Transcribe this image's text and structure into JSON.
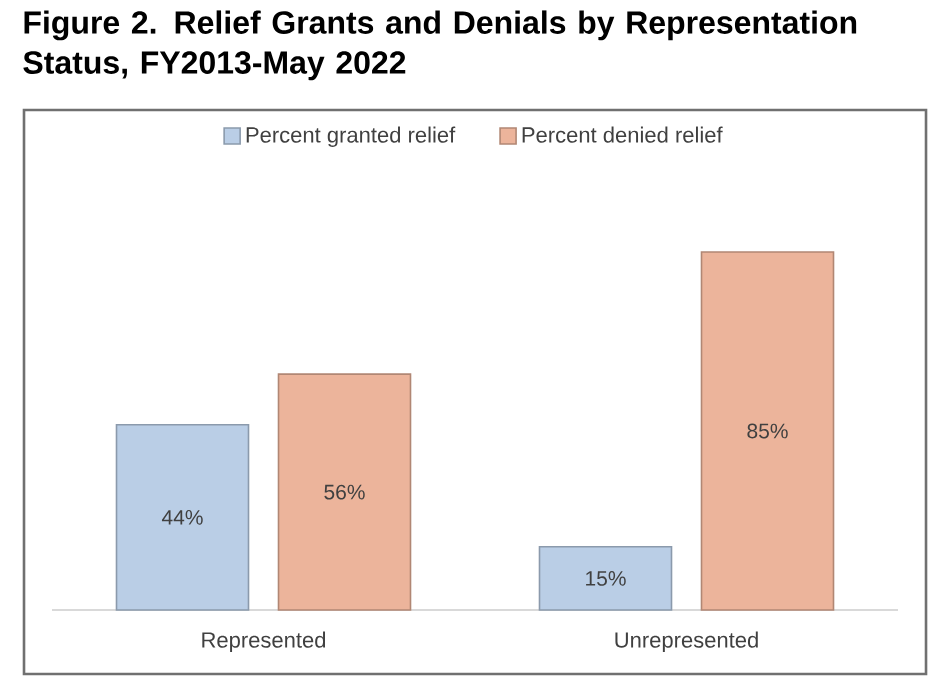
{
  "chart_data": {
    "type": "bar",
    "title": "Figure 2. Relief Grants and Denials by Representation Status, FY2013-May 2022",
    "categories": [
      "Represented",
      "Unrepresented"
    ],
    "series": [
      {
        "name": "Percent granted relief",
        "color": "#bacee6",
        "values": [
          44,
          15
        ],
        "value_labels": [
          "44%",
          "15%"
        ]
      },
      {
        "name": "Percent denied relief",
        "color": "#ecb49b",
        "values": [
          56,
          85
        ],
        "value_labels": [
          "56%",
          "85%"
        ]
      }
    ],
    "legend": "top"
  }
}
